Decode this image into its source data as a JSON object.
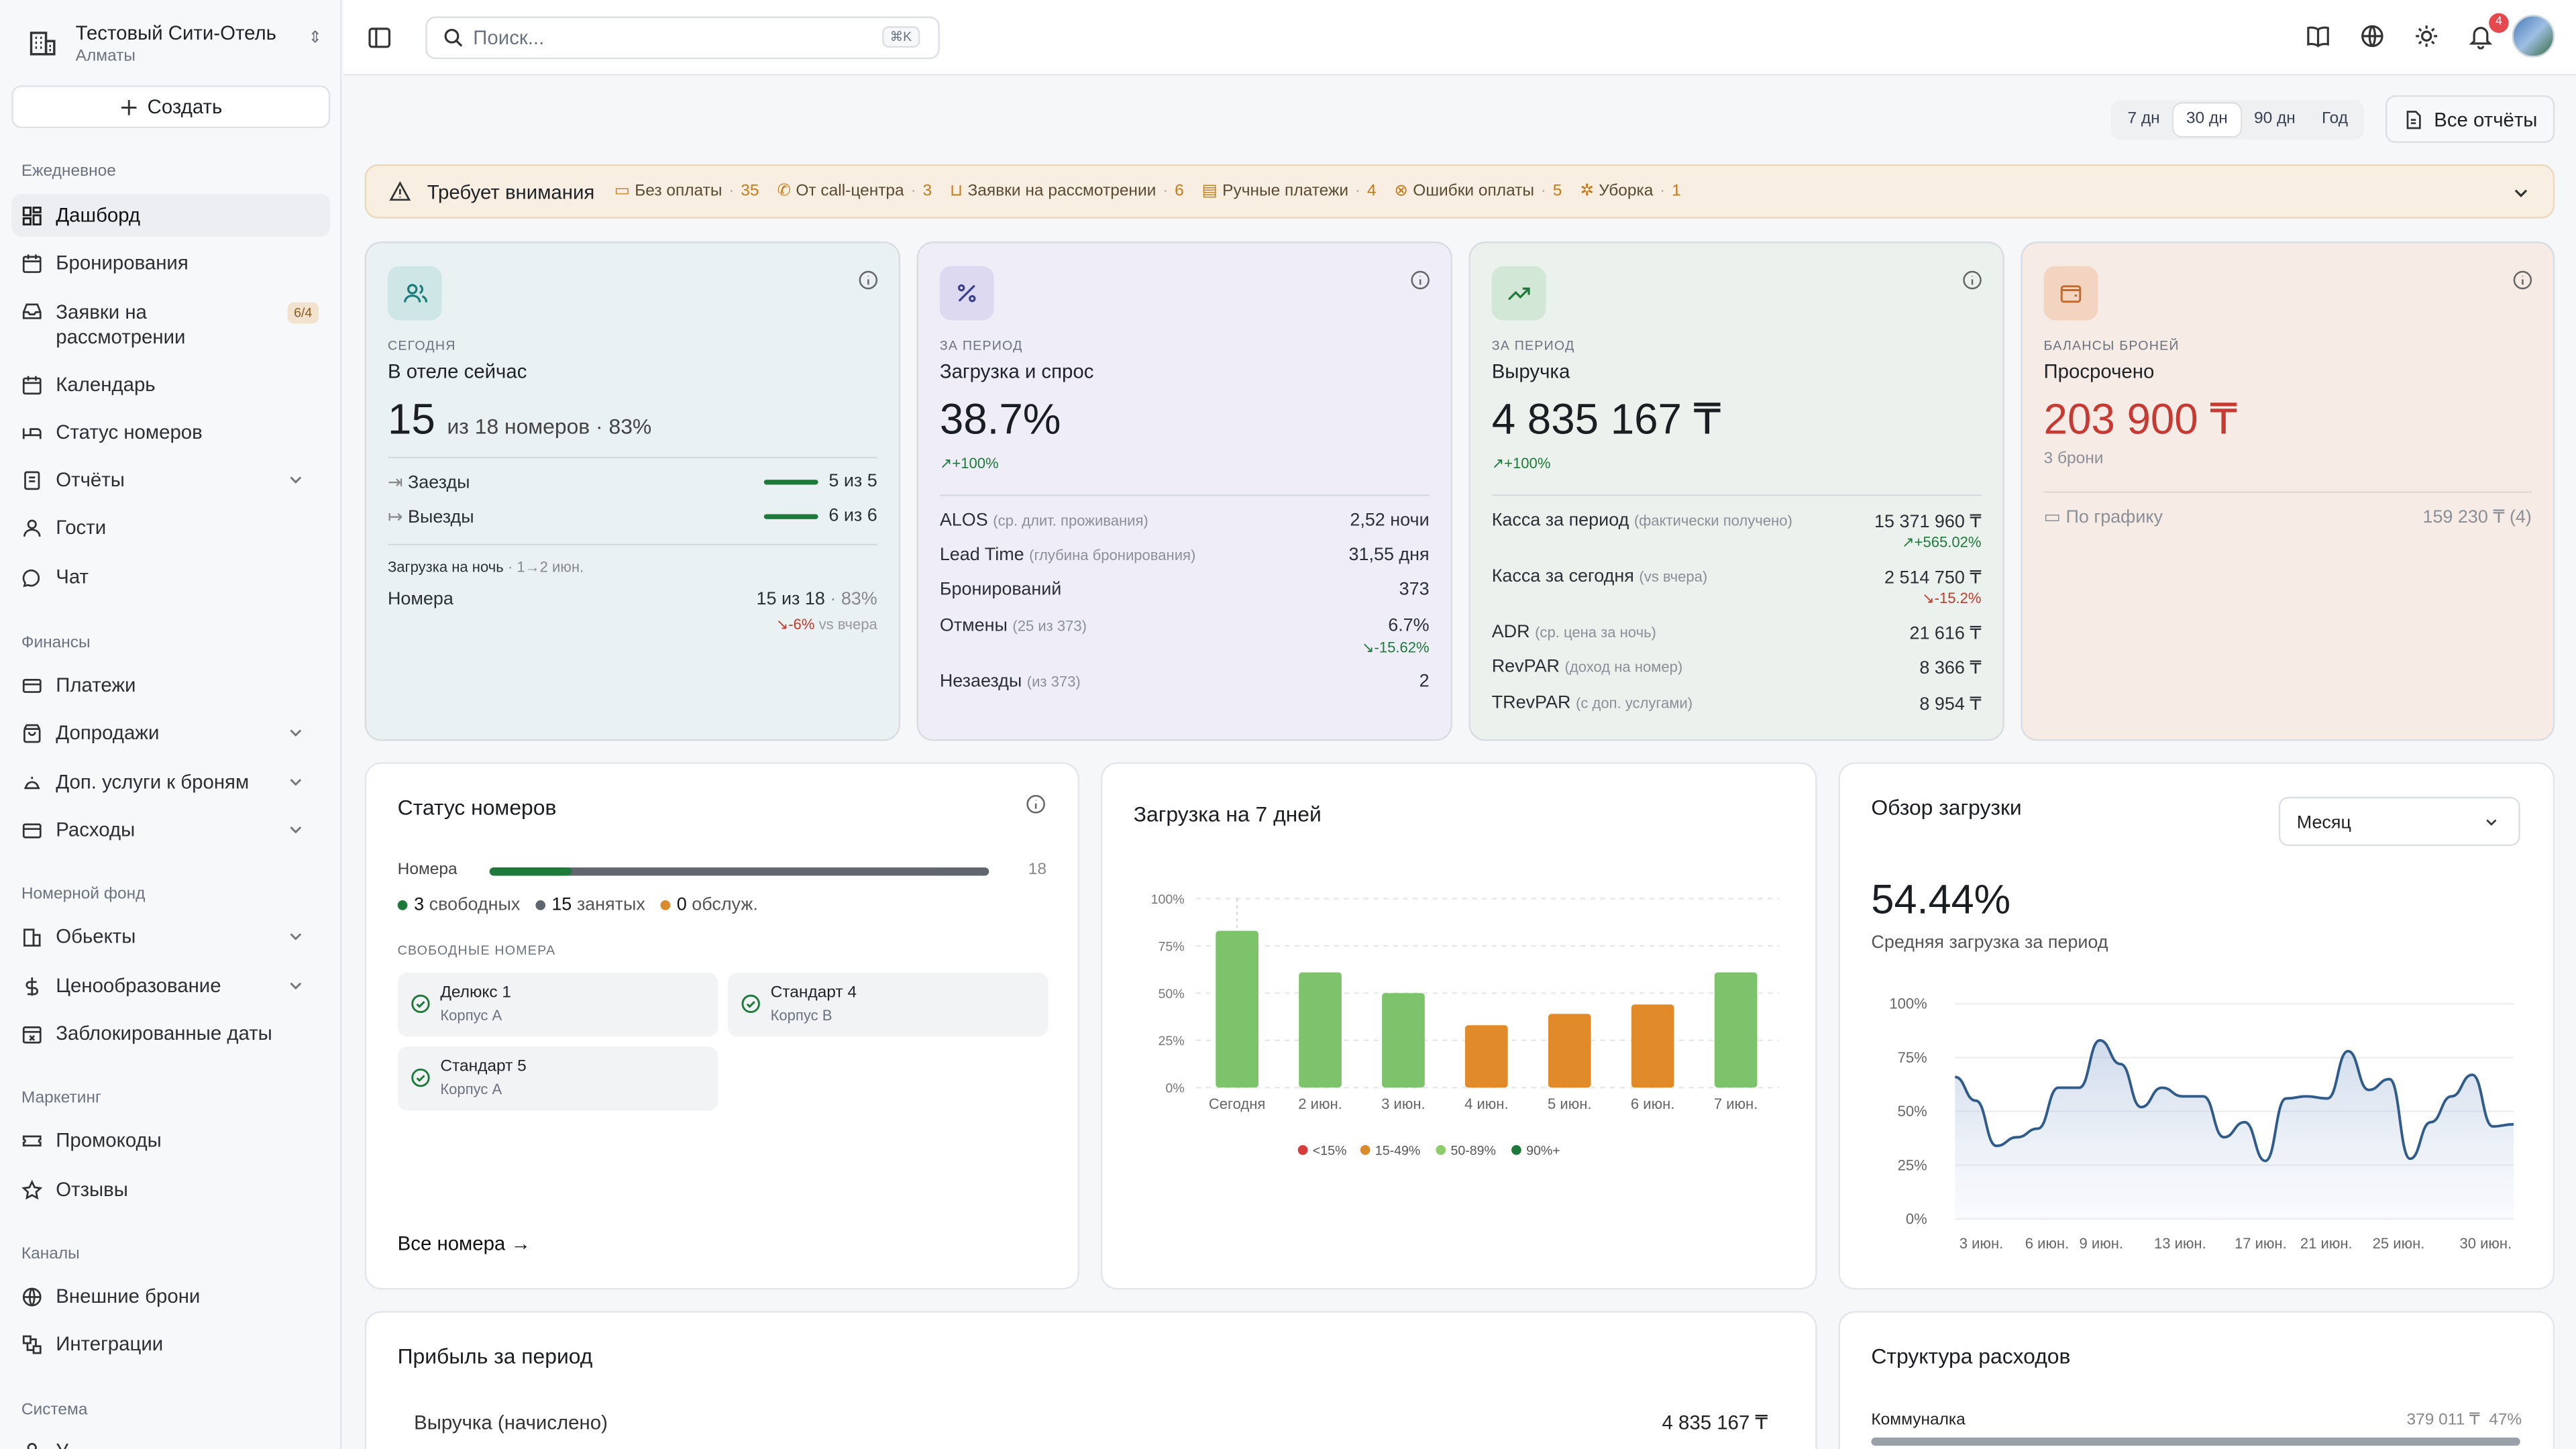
{
  "hotel": {
    "name": "Тестовый Сити-Отель",
    "city": "Алматы"
  },
  "create_label": "Создать",
  "sections": {
    "daily": "Ежедневное",
    "finance": "Финансы",
    "rooms": "Номерной фонд",
    "marketing": "Маркетинг",
    "channels": "Каналы",
    "system": "Система"
  },
  "nav": {
    "dashboard": "Дашборд",
    "bookings": "Бронирования",
    "requests": "Заявки на рассмотрении",
    "requests_badge": "6/4",
    "calendar": "Календарь",
    "room_status": "Статус номеров",
    "reports": "Отчёты",
    "guests": "Гости",
    "chat": "Чат",
    "payments": "Платежи",
    "upsells": "Допродажи",
    "extra_services": "Доп. услуги к броням",
    "expenses": "Расходы",
    "objects": "Обьекты",
    "pricing": "Ценообразование",
    "blocked": "Заблокированные даты",
    "promocodes": "Промокоды",
    "reviews": "Отзывы",
    "external": "Внешние брони",
    "integrations": "Интеграции",
    "system_item": "У"
  },
  "search": {
    "placeholder": "Поиск...",
    "shortcut": "⌘K"
  },
  "notifications_count": "4",
  "periods": [
    "7 дн",
    "30 дн",
    "90 дн",
    "Год"
  ],
  "period_selected": "30 дн",
  "all_reports": "Все отчёты",
  "attention": {
    "title": "Требует внимания",
    "items": [
      {
        "label": "Без оплаты",
        "count": "35",
        "icon": "card-icon"
      },
      {
        "label": "От call-центра",
        "count": "3",
        "icon": "phone-icon"
      },
      {
        "label": "Заявки на рассмотрении",
        "count": "6",
        "icon": "inbox-icon"
      },
      {
        "label": "Ручные платежи",
        "count": "4",
        "icon": "receipt-icon"
      },
      {
        "label": "Ошибки оплаты",
        "count": "5",
        "icon": "x-circle-icon"
      },
      {
        "label": "Уборка",
        "count": "1",
        "icon": "sparkle-icon"
      }
    ]
  },
  "kpi1": {
    "label": "СЕГОДНЯ",
    "title": "В отеле сейчас",
    "big": "15",
    "sub": "из 18 номеров · 83%",
    "checkin": "Заезды",
    "checkin_val": "5 из 5",
    "checkout": "Выезды",
    "checkout_val": "6 из 6",
    "night": "Загрузка на ночь",
    "night_sub": "· 1→2 июн.",
    "rooms": "Номера",
    "rooms_val": "15 из 18",
    "rooms_pct": "· 83%",
    "rooms_delta": "-6%",
    "rooms_vs": "vs вчера"
  },
  "kpi2": {
    "label": "ЗА ПЕРИОД",
    "title": "Загрузка и спрос",
    "big": "38.7%",
    "delta": "+100%",
    "rows": [
      {
        "k": "ALOS",
        "s": "(ср. длит. проживания)",
        "v": "2,52 ночи"
      },
      {
        "k": "Lead Time",
        "s": "(глубина бронирования)",
        "v": "31,55 дня"
      },
      {
        "k": "Бронирований",
        "s": "",
        "v": "373"
      },
      {
        "k": "Отмены",
        "s": "(25 из 373)",
        "v": "6.7%",
        "d": "-15.62%"
      },
      {
        "k": "Незаезды",
        "s": "(из 373)",
        "v": "2"
      }
    ]
  },
  "kpi3": {
    "label": "ЗА ПЕРИОД",
    "title": "Выручка",
    "big": "4 835 167 ₸",
    "delta": "+100%",
    "rows": [
      {
        "k": "Касса за период",
        "s": "(фактически получено)",
        "v": "15 371 960 ₸",
        "d": "+565.02%"
      },
      {
        "k": "Касса за сегодня",
        "s": "(vs вчера)",
        "v": "2 514 750 ₸",
        "d": "-15.2%"
      },
      {
        "k": "ADR",
        "s": "(ср. цена за ночь)",
        "v": "21 616 ₸"
      },
      {
        "k": "RevPAR",
        "s": "(доход на номер)",
        "v": "8 366 ₸"
      },
      {
        "k": "TRevPAR",
        "s": "(с доп. услугами)",
        "v": "8 954 ₸"
      }
    ]
  },
  "kpi4": {
    "label": "БАЛАНСЫ БРОНЕЙ",
    "title": "Просрочено",
    "big": "203 900 ₸",
    "sub": "3 брони",
    "sched": "По графику",
    "sched_val": "159 230 ₸ (4)"
  },
  "room_status": {
    "title": "Статус номеров",
    "bar_label": "Номера",
    "total": "18",
    "free_n": "3",
    "free_l": "свободных",
    "occ_n": "15",
    "occ_l": "занятых",
    "svc_n": "0",
    "svc_l": "обслуж.",
    "free_title": "СВОБОДНЫЕ НОМЕРА",
    "rooms": [
      {
        "name": "Делюкс 1",
        "bldg": "Корпус А"
      },
      {
        "name": "Стандарт 4",
        "bldg": "Корпус В"
      },
      {
        "name": "Стандарт 5",
        "bldg": "Корпус А"
      }
    ],
    "all": "Все номера"
  },
  "week": {
    "title": "Загрузка на 7 дней"
  },
  "overview": {
    "title": "Обзор загрузки",
    "select": "Месяц",
    "big": "54.44%",
    "sub": "Средняя загрузка за период"
  },
  "profit": {
    "title": "Прибыль за период",
    "row": "Выручка (начислено)",
    "val": "4 835 167 ₸"
  },
  "expenses": {
    "title": "Структура расходов",
    "row": "Коммуналка",
    "val": "379 011 ₸",
    "pct": "47%"
  },
  "colors": {
    "green": "#1e7a3a",
    "red": "#c0392b",
    "orange": "#d98a2b",
    "light_green": "#7cc36b"
  },
  "chart_data": [
    {
      "type": "bar",
      "title": "Загрузка на 7 дней",
      "categories": [
        "Сегодня",
        "2 июн.",
        "3 июн.",
        "4 июн.",
        "5 июн.",
        "6 июн.",
        "7 июн."
      ],
      "values": [
        83,
        61,
        50,
        33,
        39,
        44,
        61
      ],
      "ylim": [
        0,
        100
      ],
      "yticks": [
        "0%",
        "25%",
        "50%",
        "75%",
        "100%"
      ],
      "legend": [
        "<15%",
        "15-49%",
        "50-89%",
        "90%+"
      ],
      "legend_colors": [
        "#d63c3c",
        "#d98a2b",
        "#8fcb6a",
        "#1e7a3a"
      ],
      "bar_colors": [
        "#7cc36b",
        "#7cc36b",
        "#7cc36b",
        "#e08a2a",
        "#e08a2a",
        "#e08a2a",
        "#7cc36b"
      ]
    },
    {
      "type": "area",
      "title": "Обзор загрузки",
      "x_labels": [
        "3 июн.",
        "6 июн.",
        "9 июн.",
        "13 июн.",
        "17 июн.",
        "21 июн.",
        "25 июн.",
        "30 июн."
      ],
      "values": [
        66,
        55,
        34,
        38,
        42,
        61,
        61,
        83,
        72,
        52,
        61,
        57,
        57,
        38,
        45,
        27,
        56,
        57,
        56,
        78,
        60,
        65,
        28,
        45,
        57,
        67,
        43,
        44
      ],
      "ylim": [
        0,
        100
      ],
      "yticks": [
        "0%",
        "25%",
        "50%",
        "75%",
        "100%"
      ]
    }
  ]
}
